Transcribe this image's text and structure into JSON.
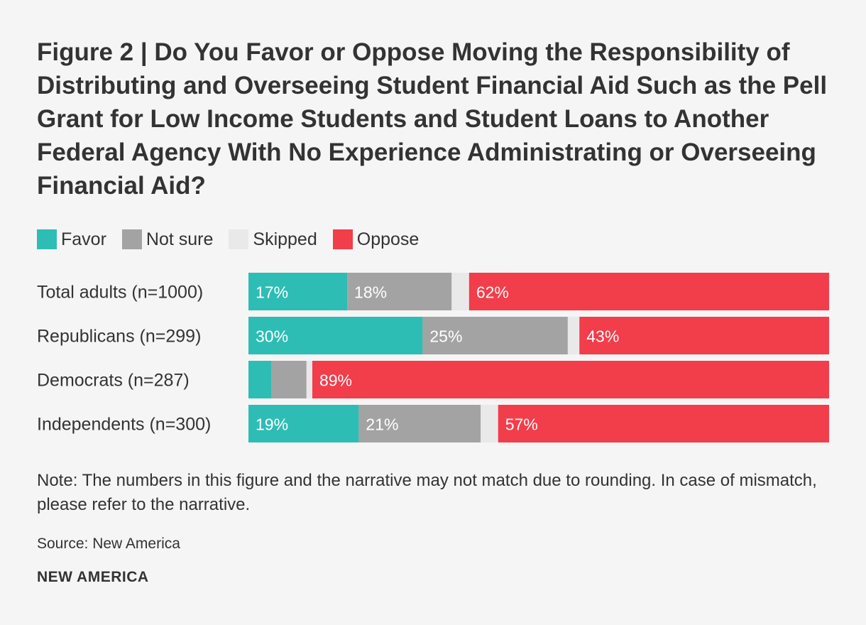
{
  "colors": {
    "favor": "#2ebdb4",
    "not_sure": "#a3a3a3",
    "skipped": "#e9e9e9",
    "oppose": "#f23d4a",
    "label_text": "#ffffff"
  },
  "chart_data": {
    "type": "bar",
    "orientation": "horizontal",
    "stacked": true,
    "title": "Figure 2 | Do You Favor or Oppose Moving the Responsibility of Distributing and Overseeing Student Financial Aid Such as the Pell Grant for Low Income Students and Student Loans to Another Federal Agency With No Experience Administrating or Overseeing Financial Aid?",
    "categories": [
      "Total adults (n=1000)",
      "Republicans (n=299)",
      "Democrats (n=287)",
      "Independents (n=300)"
    ],
    "series": [
      {
        "name": "Favor",
        "values": [
          17,
          30,
          4,
          19
        ],
        "labels": [
          "17%",
          "30%",
          "",
          "19%"
        ]
      },
      {
        "name": "Not sure",
        "values": [
          18,
          25,
          6,
          21
        ],
        "labels": [
          "18%",
          "25%",
          "",
          "21%"
        ]
      },
      {
        "name": "Skipped",
        "values": [
          3,
          2,
          1,
          3
        ],
        "labels": [
          "",
          "",
          "",
          ""
        ]
      },
      {
        "name": "Oppose",
        "values": [
          62,
          43,
          89,
          57
        ],
        "labels": [
          "62%",
          "43%",
          "89%",
          "57%"
        ]
      }
    ],
    "xlim": [
      0,
      100
    ],
    "legend": "top-left",
    "grid": false
  },
  "note": "Note: The numbers in this figure and the narrative may not match due to rounding. In case of mismatch, please refer to the narrative.",
  "source": "Source: New America",
  "brand": "NEW AMERICA"
}
